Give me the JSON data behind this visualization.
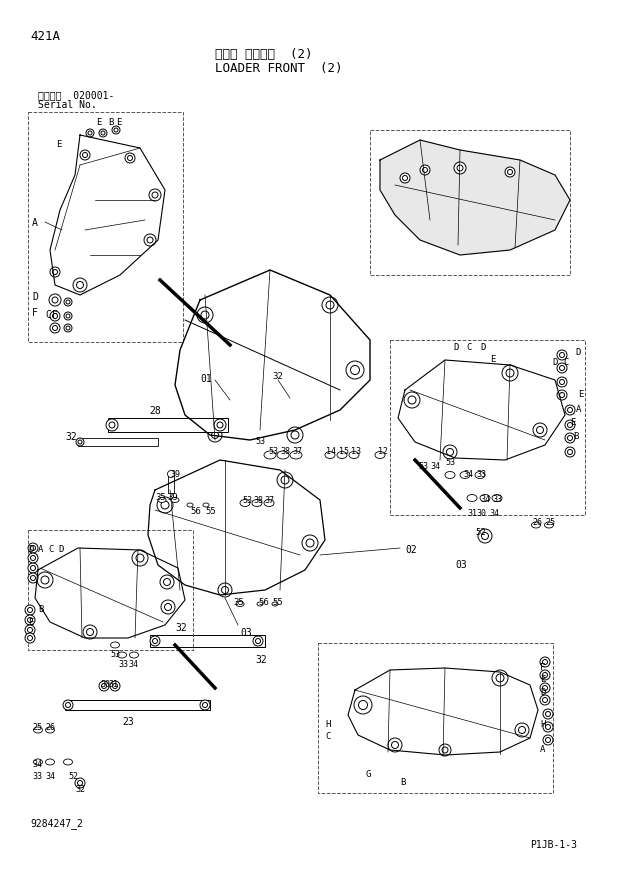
{
  "title_jp": "ローダ フロント  (2)",
  "title_en": "LOADER FRONT  (2)",
  "page_code": "421A",
  "serial_label": "適用号機  020001-",
  "serial_label2": "Serial No.",
  "drawing_no": "9284247_2",
  "page_ref": "P1JB-1-3",
  "bg_color": "#ffffff",
  "line_color": "#000000",
  "box_line_color": "#555555",
  "text_color": "#000000",
  "figsize": [
    6.2,
    8.73
  ],
  "dpi": 100
}
